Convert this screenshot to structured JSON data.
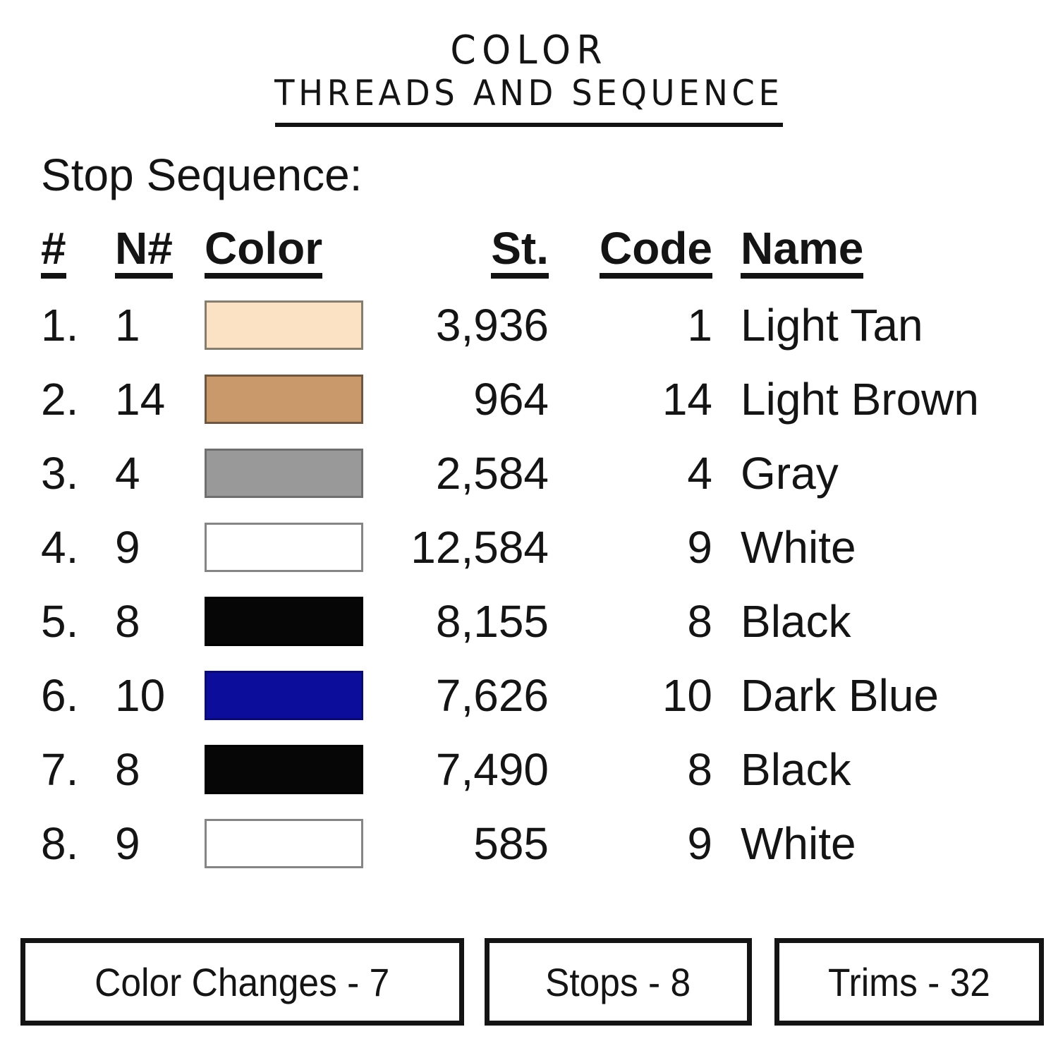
{
  "page": {
    "background_color": "#ffffff",
    "text_color": "#141414"
  },
  "header": {
    "title": "COLOR",
    "subtitle": "THREADS AND SEQUENCE"
  },
  "section": {
    "heading": "Stop Sequence:"
  },
  "table": {
    "headers": {
      "num": "#",
      "needle": "N#",
      "color": "Color",
      "stitches": "St.",
      "code": "Code",
      "name": "Name"
    },
    "rows": [
      {
        "num": "1.",
        "needle": "1",
        "swatch_name": "light-tan",
        "swatch_fill": "#FCE2C4",
        "swatch_border": "#857E6F",
        "stitches": "3,936",
        "code": "1",
        "name": "Light Tan"
      },
      {
        "num": "2.",
        "needle": "14",
        "swatch_name": "light-brown",
        "swatch_fill": "#C9996B",
        "swatch_border": "#6E5740",
        "stitches": "964",
        "code": "14",
        "name": "Light Brown"
      },
      {
        "num": "3.",
        "needle": "4",
        "swatch_name": "gray",
        "swatch_fill": "#999999",
        "swatch_border": "#6F6F6F",
        "stitches": "2,584",
        "code": "4",
        "name": "Gray"
      },
      {
        "num": "4.",
        "needle": "9",
        "swatch_name": "white",
        "swatch_fill": "#FFFFFF",
        "swatch_border": "#858585",
        "stitches": "12,584",
        "code": "9",
        "name": "White"
      },
      {
        "num": "5.",
        "needle": "8",
        "swatch_name": "black",
        "swatch_fill": "#060606",
        "swatch_border": "#000000",
        "stitches": "8,155",
        "code": "8",
        "name": "Black"
      },
      {
        "num": "6.",
        "needle": "10",
        "swatch_name": "dark-blue",
        "swatch_fill": "#0D0D9C",
        "swatch_border": "#0A0A70",
        "stitches": "7,626",
        "code": "10",
        "name": "Dark Blue"
      },
      {
        "num": "7.",
        "needle": "8",
        "swatch_name": "black",
        "swatch_fill": "#060606",
        "swatch_border": "#000000",
        "stitches": "7,490",
        "code": "8",
        "name": "Black"
      },
      {
        "num": "8.",
        "needle": "9",
        "swatch_name": "white",
        "swatch_fill": "#FFFFFF",
        "swatch_border": "#858585",
        "stitches": "585",
        "code": "9",
        "name": "White"
      }
    ]
  },
  "footer": {
    "boxes": [
      {
        "label": "Color Changes - 7"
      },
      {
        "label": "Stops - 8"
      },
      {
        "label": "Trims - 32"
      }
    ]
  }
}
